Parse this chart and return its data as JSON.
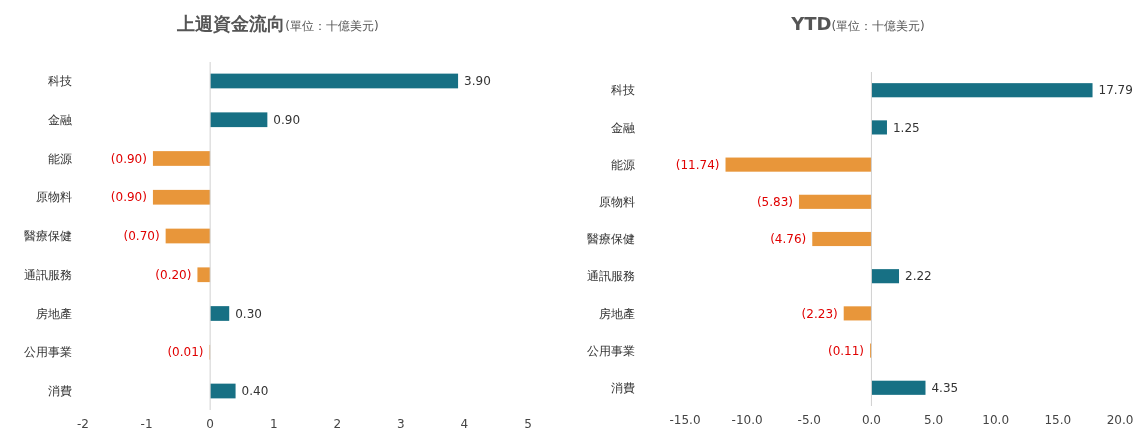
{
  "chart_data": [
    {
      "type": "bar",
      "orientation": "horizontal",
      "title": "上週資金流向",
      "subtitle": "(單位：十億美元)",
      "categories": [
        "科技",
        "金融",
        "能源",
        "原物料",
        "醫療保健",
        "通訊服務",
        "房地產",
        "公用事業",
        "消費"
      ],
      "values": [
        3.9,
        0.9,
        -0.9,
        -0.9,
        -0.7,
        -0.2,
        0.3,
        -0.01,
        0.4
      ],
      "colors": [
        "#177084",
        "#177084",
        "#e8963a",
        "#e8963a",
        "#e8963a",
        "#e8963a",
        "#177084",
        "#e8963a",
        "#177084"
      ],
      "value_labels": [
        "3.90",
        "0.90",
        "(0.90)",
        "(0.90)",
        "(0.70)",
        "(0.20)",
        "0.30",
        "(0.01)",
        "0.40"
      ],
      "xlim": [
        -2,
        5
      ],
      "xticks": [
        -2,
        -1,
        0,
        1,
        2,
        3,
        4,
        5
      ]
    },
    {
      "type": "bar",
      "orientation": "horizontal",
      "title": "YTD",
      "subtitle": "(單位：十億美元)",
      "categories": [
        "科技",
        "金融",
        "能源",
        "原物料",
        "醫療保健",
        "通訊服務",
        "房地產",
        "公用事業",
        "消費"
      ],
      "values": [
        17.79,
        1.25,
        -11.74,
        -5.83,
        -4.76,
        2.22,
        -2.23,
        -0.11,
        4.35
      ],
      "colors": [
        "#177084",
        "#177084",
        "#e8963a",
        "#e8963a",
        "#e8963a",
        "#177084",
        "#e8963a",
        "#e8963a",
        "#177084"
      ],
      "value_labels": [
        "17.79",
        "1.25",
        "(11.74)",
        "(5.83)",
        "(4.76)",
        "2.22",
        "(2.23)",
        "(0.11)",
        "4.35"
      ],
      "xlim": [
        -15,
        20
      ],
      "xticks": [
        {
          "value": -15,
          "label": "-15.0"
        },
        {
          "value": -10,
          "label": "-10.0"
        },
        {
          "value": -5,
          "label": "-5.0"
        },
        {
          "value": 0,
          "label": "0.0"
        },
        {
          "value": 5,
          "label": "5.0"
        },
        {
          "value": 10,
          "label": "10.0"
        },
        {
          "value": 15,
          "label": "15.0"
        },
        {
          "value": 20,
          "label": "20.0"
        }
      ]
    }
  ]
}
